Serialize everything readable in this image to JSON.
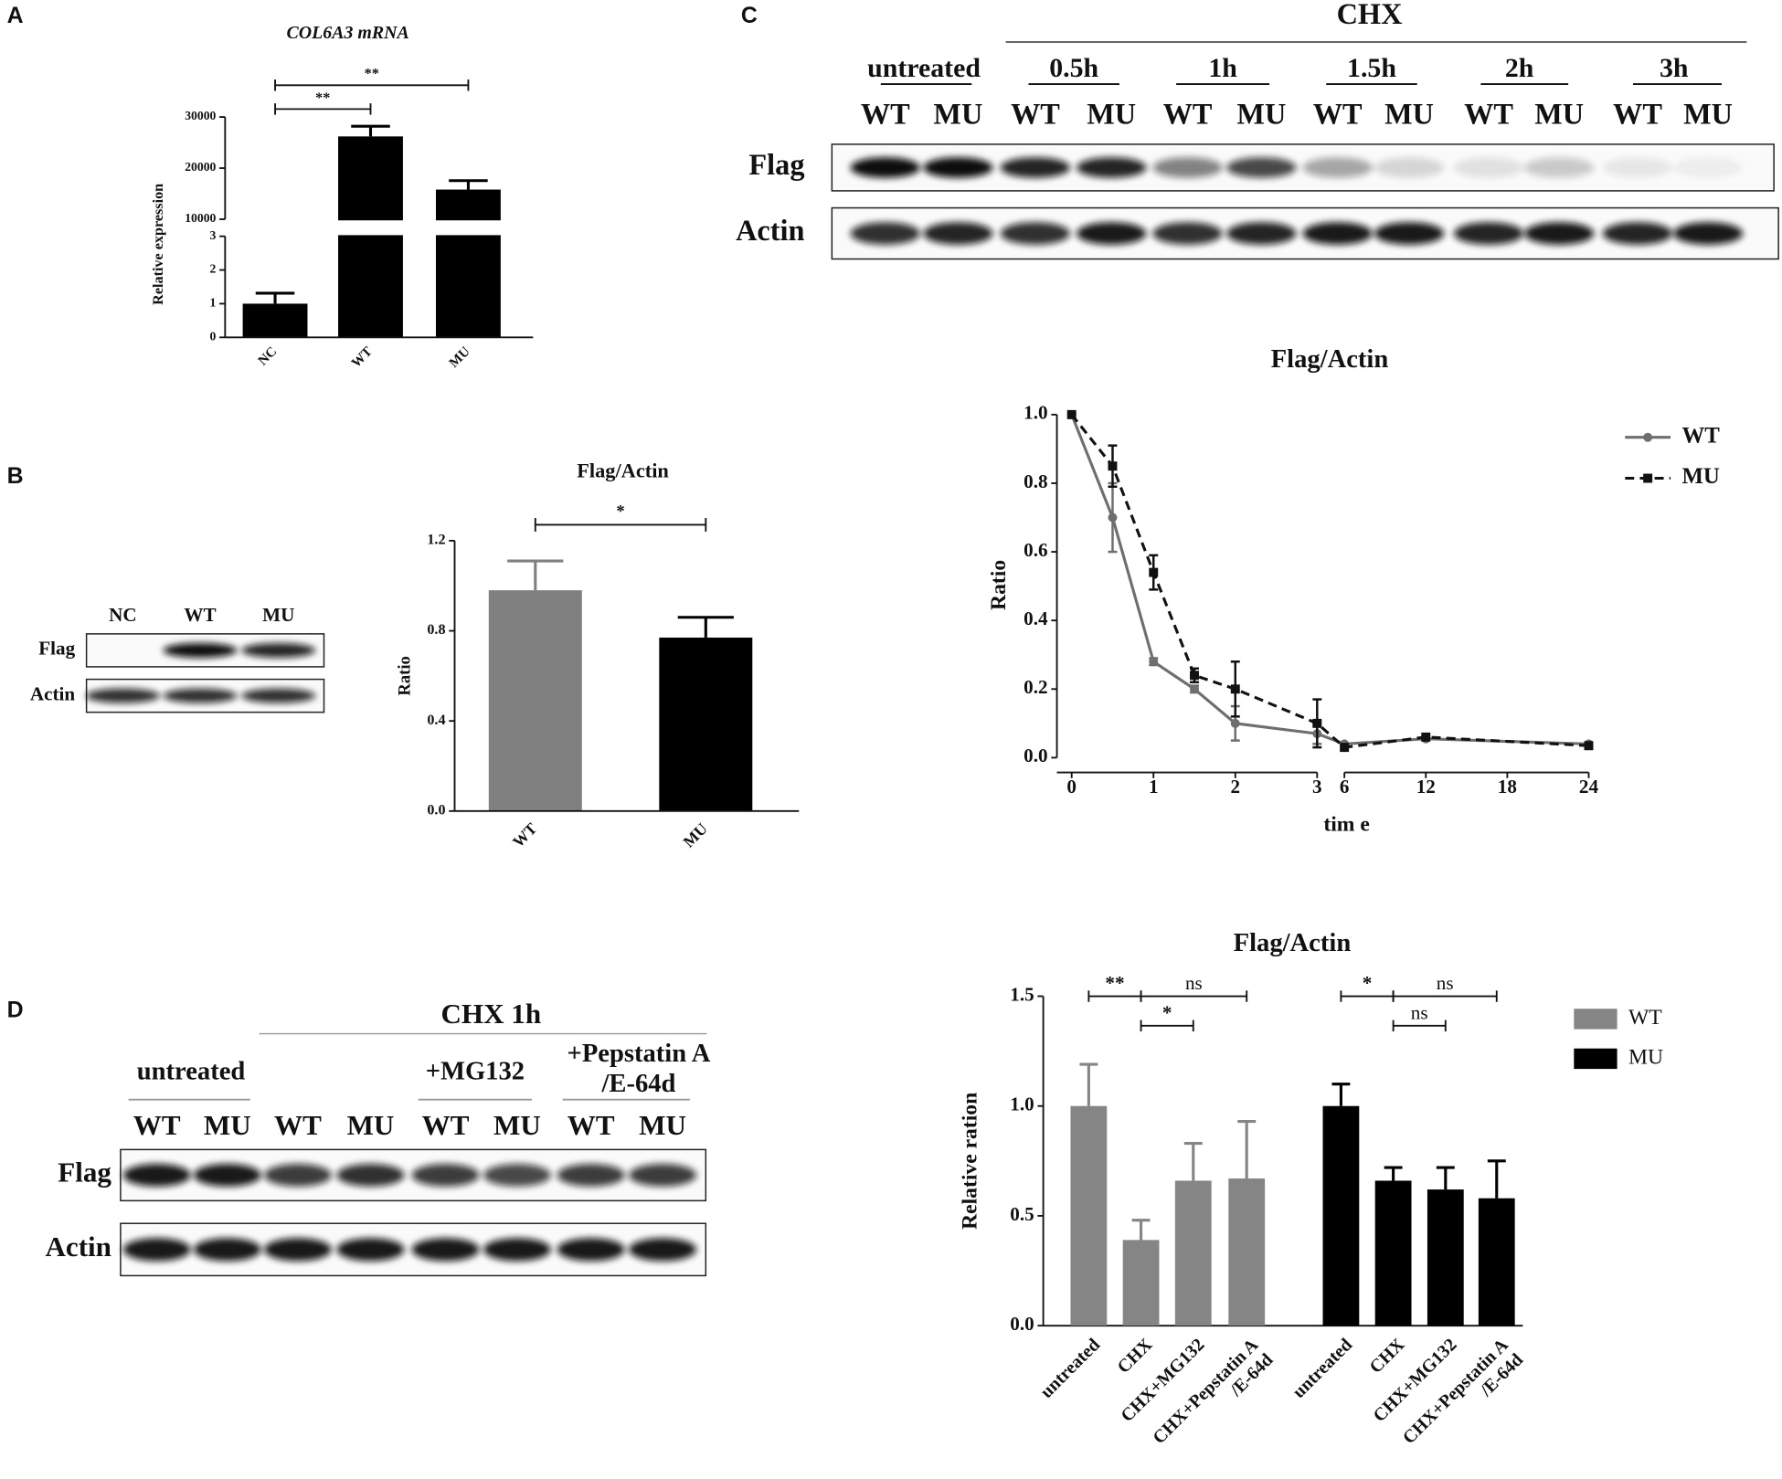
{
  "panel_labels": [
    "A",
    "B",
    "C",
    "D"
  ],
  "chart_data": [
    {
      "type": "bar",
      "title": "COL6A3 mRNA",
      "ylabel": "Relative expression",
      "categories": [
        "NC",
        "WT",
        "MU"
      ],
      "values": [
        1,
        26200,
        15800
      ],
      "errors": [
        0.31,
        2000,
        1750
      ],
      "color": "#000000",
      "ylim": [
        0,
        30000
      ],
      "ybreak": [
        3,
        10000
      ],
      "yticks": [
        0,
        1,
        2,
        3,
        10000,
        20000,
        30000
      ],
      "significance": [
        {
          "from": "NC",
          "to": "MU",
          "label": "**"
        },
        {
          "from": "NC",
          "to": "WT",
          "label": "**"
        }
      ]
    },
    {
      "type": "bar",
      "title": "Flag/Actin",
      "ylabel": "Ratio",
      "categories": [
        "WT",
        "MU"
      ],
      "values": [
        0.98,
        0.77
      ],
      "errors": [
        0.13,
        0.09
      ],
      "colors": [
        "#808080",
        "#000000"
      ],
      "ylim": [
        0,
        1.2
      ],
      "yticks": [
        {
          "value": 0,
          "label": "0.0"
        },
        0.4,
        0.8,
        1.2
      ],
      "significance": [
        {
          "from": "WT",
          "to": "MU",
          "label": "*"
        }
      ]
    },
    {
      "type": "line",
      "title": "Flag/Actin",
      "xlabel": "tim e",
      "ylabel": "Ratio",
      "x": [
        0,
        0.5,
        1,
        1.5,
        2,
        3,
        6,
        12,
        24
      ],
      "series": [
        {
          "name": "WT",
          "color": "#6e6e6e",
          "values": [
            1,
            0.7,
            0.28,
            0.2,
            0.1,
            0.07,
            0.04,
            0.055,
            0.04
          ],
          "errors": [
            0,
            0.1,
            0.01,
            0.01,
            0.05,
            0.03,
            0,
            0,
            0
          ]
        },
        {
          "name": "MU",
          "color": "#111111",
          "values": [
            1,
            0.85,
            0.54,
            0.24,
            0.2,
            0.1,
            0.03,
            0.06,
            0.035
          ],
          "errors": [
            0,
            0.06,
            0.05,
            0.02,
            0.08,
            0.07,
            0,
            0,
            0
          ]
        }
      ],
      "xlim": [
        0,
        24
      ],
      "xbreak": [
        3,
        6
      ],
      "xticks": [
        0,
        1,
        2,
        3,
        6,
        12,
        18,
        24
      ],
      "ylim": [
        0,
        1
      ],
      "yticks": [
        {
          "value": 0,
          "label": "0.0"
        },
        0.2,
        0.4,
        0.6,
        0.8,
        {
          "value": 1,
          "label": "1.0"
        }
      ],
      "legend": "upper right"
    },
    {
      "type": "grouped_bar",
      "title": "Flag/Actin",
      "ylabel": "Relative ration",
      "categories": [
        "untreated",
        "CHX",
        "CHX+MG132",
        "CHX+Pepstatin A\n/E-64d"
      ],
      "series": [
        {
          "name": "WT",
          "color": "#858585",
          "values": [
            1.0,
            0.39,
            0.66,
            0.67
          ],
          "errors": [
            0.19,
            0.09,
            0.17,
            0.26
          ]
        },
        {
          "name": "MU",
          "color": "#000000",
          "values": [
            1.0,
            0.66,
            0.62,
            0.58
          ],
          "errors": [
            0.1,
            0.06,
            0.1,
            0.17
          ]
        }
      ],
      "ylim": [
        0,
        1.5
      ],
      "yticks": [
        {
          "value": 0,
          "label": "0.0"
        },
        0.5,
        {
          "value": 1,
          "label": "1.0"
        },
        1.5
      ],
      "legend": "upper right",
      "significance": [
        {
          "series": "WT",
          "from": "untreated",
          "to": "CHX",
          "label": "**"
        },
        {
          "series": "WT",
          "from": "CHX",
          "to": "CHX+Pepstatin A\n/E-64d",
          "label": "ns"
        },
        {
          "series": "WT",
          "from": "CHX",
          "to": "CHX+MG132",
          "label": "*"
        },
        {
          "series": "MU",
          "from": "untreated",
          "to": "CHX",
          "label": "*"
        },
        {
          "series": "MU",
          "from": "CHX",
          "to": "CHX+Pepstatin A\n/E-64d",
          "label": "ns"
        },
        {
          "series": "MU",
          "from": "CHX",
          "to": "CHX+MG132",
          "label": "ns"
        }
      ]
    }
  ],
  "blots": [
    {
      "lanes": [
        "NC",
        "WT",
        "MU"
      ],
      "rows": [
        "Flag",
        "Actin"
      ]
    },
    {
      "header": "CHX",
      "groups": [
        "untreated",
        "0.5h",
        "1h",
        "1.5h",
        "2h",
        "3h"
      ],
      "lanes": [
        "WT",
        "MU",
        "WT",
        "MU",
        "WT",
        "MU",
        "WT",
        "MU",
        "WT",
        "MU",
        "WT",
        "MU"
      ],
      "rows": [
        "Flag",
        "Actin"
      ]
    },
    {
      "header": "CHX 1h",
      "groups": [
        "untreated",
        "+MG132",
        "+Pepstatin A\n/E-64d"
      ],
      "lanes": [
        "WT",
        "MU",
        "WT",
        "MU",
        "WT",
        "MU",
        "WT",
        "MU"
      ],
      "rows": [
        "Flag",
        "Actin"
      ]
    }
  ]
}
